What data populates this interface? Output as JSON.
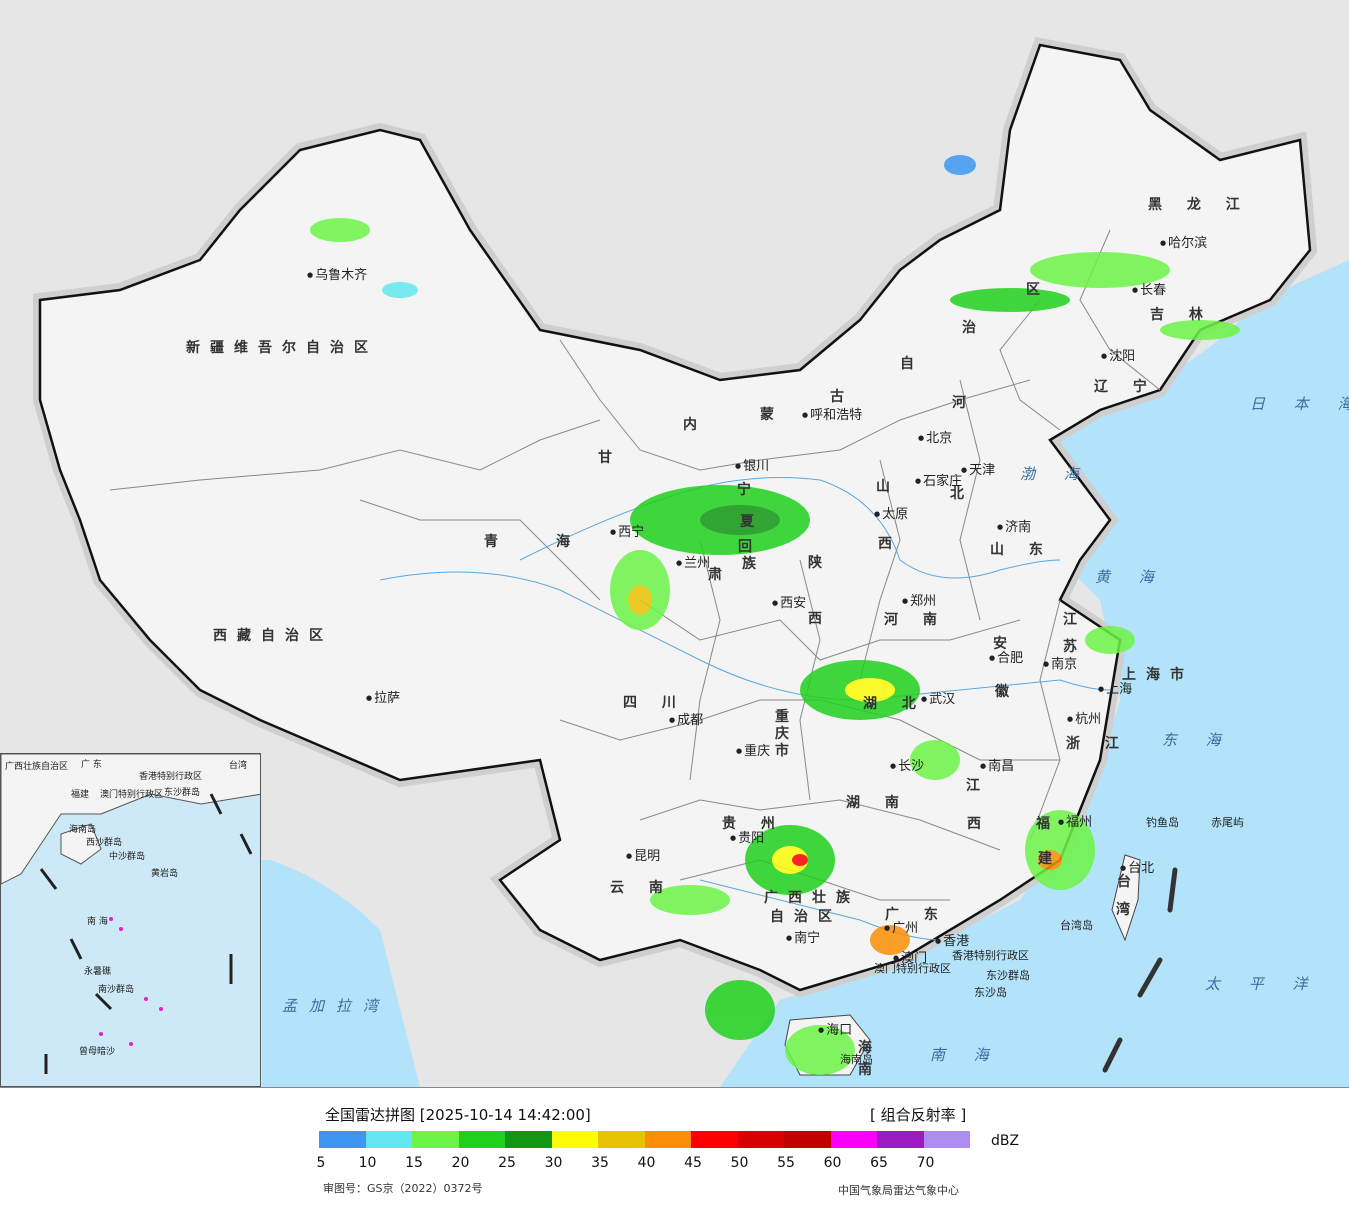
{
  "legend": {
    "title": "全国雷达拼图 [2025-10-14 14:42:00]",
    "product": "[ 组合反射率 ]",
    "unit": "dBZ",
    "ticks": [
      "5",
      "10",
      "15",
      "20",
      "25",
      "30",
      "35",
      "40",
      "45",
      "50",
      "55",
      "60",
      "65",
      "70"
    ],
    "colors": [
      "#3d97f0",
      "#63e6ef",
      "#6cf547",
      "#1fd11c",
      "#119713",
      "#fdfd09",
      "#e8c304",
      "#fb8e06",
      "#fc0000",
      "#d90000",
      "#c20000",
      "#fa00fa",
      "#9b1ac2",
      "#ad8ef0"
    ],
    "approval": "审图号：GS京（2022）0372号",
    "issuer": "中国气象局雷达气象中心"
  },
  "map": {
    "colors": {
      "sea": "#b3e3fb",
      "land": "#f4f4f4",
      "outside": "#e6e6e6",
      "border": "#111111"
    },
    "regions": [
      {
        "name": "新疆维吾尔自治区",
        "kind": "prov"
      },
      {
        "name": "西藏自治区",
        "kind": "prov"
      },
      {
        "name": "青",
        "kind": "prov"
      },
      {
        "name": "海",
        "kind": "prov"
      },
      {
        "name": "甘",
        "kind": "prov"
      },
      {
        "name": "肃",
        "kind": "prov"
      },
      {
        "name": "内",
        "kind": "prov"
      },
      {
        "name": "蒙",
        "kind": "prov"
      },
      {
        "name": "古",
        "kind": "prov"
      },
      {
        "name": "自",
        "kind": "prov"
      },
      {
        "name": "治",
        "kind": "prov"
      },
      {
        "name": "区",
        "kind": "prov"
      },
      {
        "name": "黑 龙 江",
        "kind": "prov"
      },
      {
        "name": "吉 林",
        "kind": "prov"
      },
      {
        "name": "辽 宁",
        "kind": "prov"
      },
      {
        "name": "河",
        "kind": "prov"
      },
      {
        "name": "北",
        "kind": "prov"
      },
      {
        "name": "山",
        "kind": "prov"
      },
      {
        "name": "西",
        "kind": "prov"
      },
      {
        "name": "山 东",
        "kind": "prov"
      },
      {
        "name": "陕",
        "kind": "prov"
      },
      {
        "name": "西",
        "kind": "prov"
      },
      {
        "name": "河 南",
        "kind": "prov"
      },
      {
        "name": "宁",
        "kind": "prov"
      },
      {
        "name": "夏",
        "kind": "prov"
      },
      {
        "name": "回",
        "kind": "prov"
      },
      {
        "name": "族",
        "kind": "prov"
      },
      {
        "name": "四 川",
        "kind": "prov"
      },
      {
        "name": "重",
        "kind": "prov"
      },
      {
        "name": "庆",
        "kind": "prov"
      },
      {
        "name": "市",
        "kind": "prov"
      },
      {
        "name": "湖 北",
        "kind": "prov"
      },
      {
        "name": "安",
        "kind": "prov"
      },
      {
        "name": "徽",
        "kind": "prov"
      },
      {
        "name": "江",
        "kind": "prov"
      },
      {
        "name": "苏",
        "kind": "prov"
      },
      {
        "name": "上海市",
        "kind": "prov"
      },
      {
        "name": "浙 江",
        "kind": "prov"
      },
      {
        "name": "江",
        "kind": "prov"
      },
      {
        "name": "西",
        "kind": "prov"
      },
      {
        "name": "湖 南",
        "kind": "prov"
      },
      {
        "name": "贵 州",
        "kind": "prov"
      },
      {
        "name": "云 南",
        "kind": "prov"
      },
      {
        "name": "福",
        "kind": "prov"
      },
      {
        "name": "建",
        "kind": "prov"
      },
      {
        "name": "广西壮族",
        "kind": "prov"
      },
      {
        "name": "自治区",
        "kind": "prov"
      },
      {
        "name": "广 东",
        "kind": "prov"
      },
      {
        "name": "台",
        "kind": "prov"
      },
      {
        "name": "湾",
        "kind": "prov"
      },
      {
        "name": "海",
        "kind": "prov"
      },
      {
        "name": "南",
        "kind": "prov"
      },
      {
        "name": "香港特别行政区",
        "kind": "small"
      },
      {
        "name": "澳门特别行政区",
        "kind": "small"
      }
    ],
    "cities": [
      "乌鲁木齐",
      "拉萨",
      "西宁",
      "兰州",
      "银川",
      "呼和浩特",
      "北京",
      "天津",
      "石家庄",
      "太原",
      "济南",
      "郑州",
      "西安",
      "成都",
      "重庆",
      "武汉",
      "合肥",
      "南京",
      "上海",
      "杭州",
      "南昌",
      "长沙",
      "福州",
      "台北",
      "贵阳",
      "昆明",
      "南宁",
      "广州",
      "香港",
      "澳门",
      "海口",
      "哈尔滨",
      "长春",
      "沈阳"
    ],
    "islands": [
      "钓鱼岛",
      "赤尾屿",
      "台湾岛",
      "东沙群岛",
      "东沙岛",
      "海南岛"
    ],
    "seas": [
      "日 本 海",
      "渤 海",
      "黄 海",
      "东 海",
      "太 平 洋",
      "南 海",
      "孟加拉湾"
    ],
    "inset_labels": [
      "广西壮族自治区",
      "广 东",
      "福建",
      "台湾",
      "香港特别行政区",
      "澳门特别行政区",
      "东沙群岛",
      "海南岛",
      "西沙群岛",
      "中沙群岛",
      "黄岩岛",
      "南 海",
      "永暑礁",
      "南沙群岛",
      "曾母暗沙"
    ]
  }
}
